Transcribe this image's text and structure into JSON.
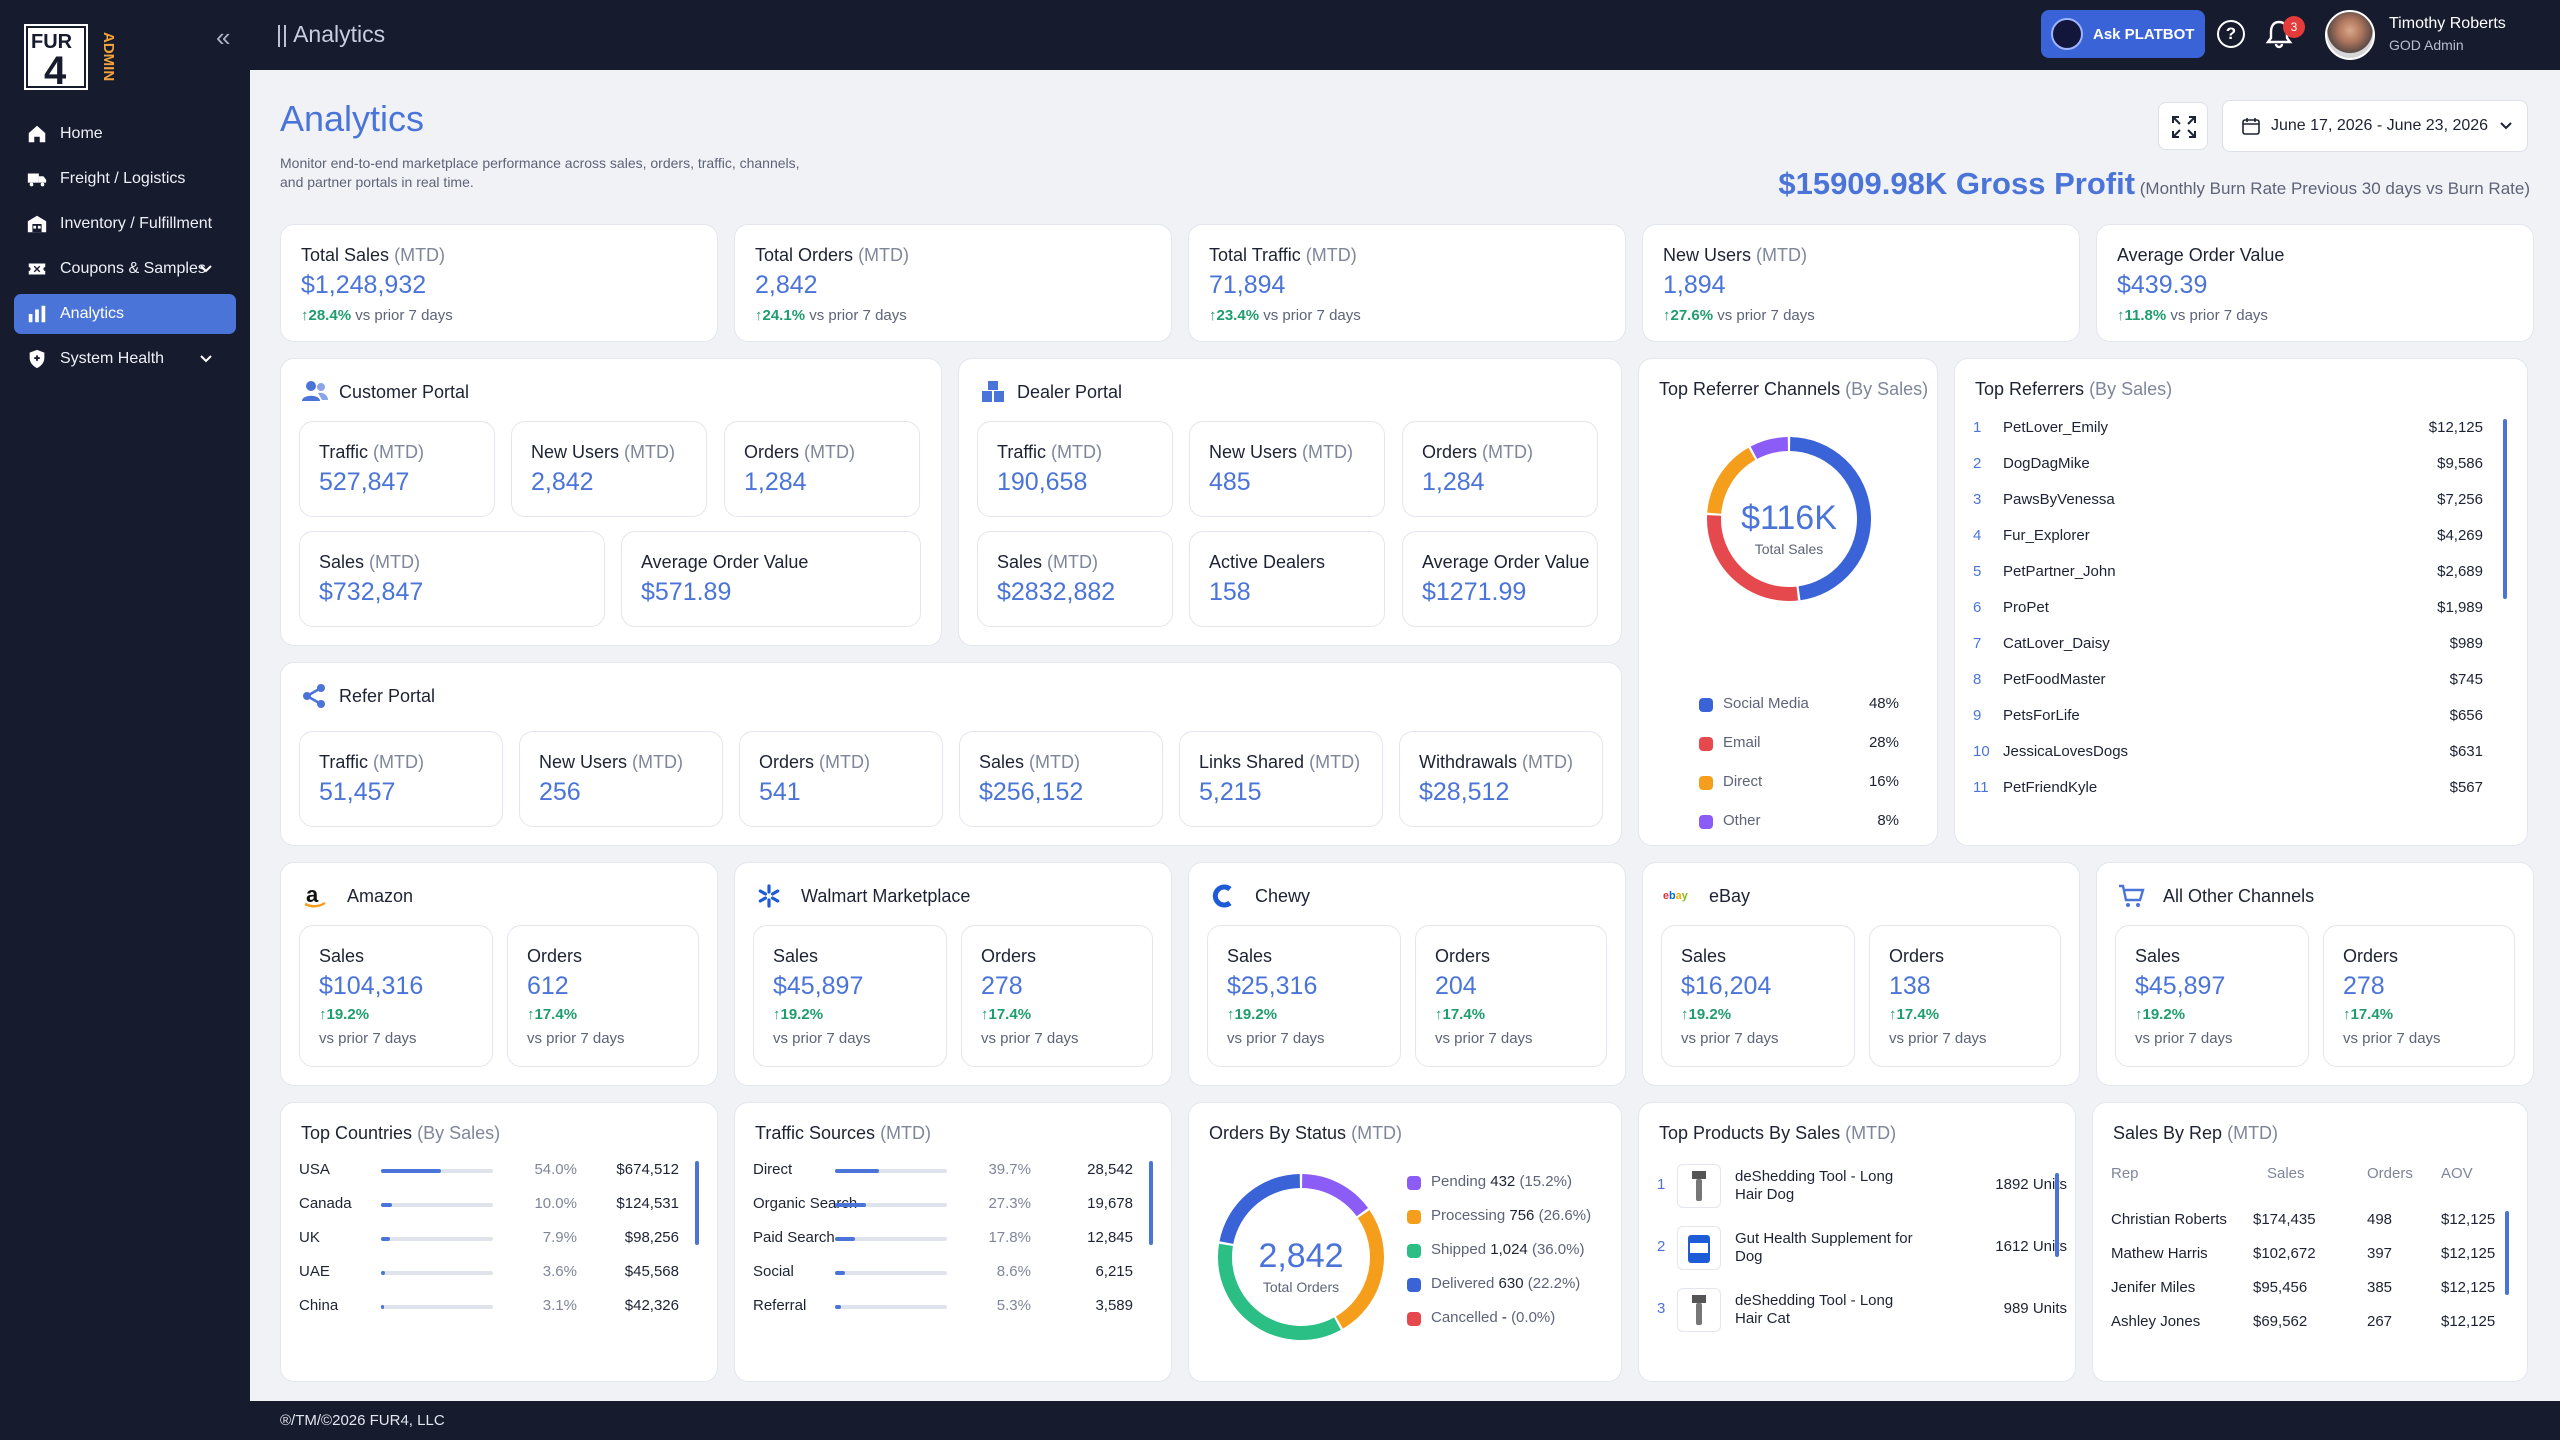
{
  "brand": {
    "logo": "FUR4",
    "tag": "ADMIN"
  },
  "nav": [
    {
      "label": "Home",
      "icon": "home-icon"
    },
    {
      "label": "Freight / Logistics",
      "icon": "truck-icon"
    },
    {
      "label": "Inventory / Fulfillment",
      "icon": "warehouse-icon"
    },
    {
      "label": "Coupons & Samples",
      "icon": "coupon-icon"
    },
    {
      "label": "Analytics",
      "icon": "chart-icon",
      "active": true
    },
    {
      "label": "System Health",
      "icon": "shield-icon"
    }
  ],
  "topbar": {
    "breadcrumb": "|| Analytics",
    "ask_label": "Ask PLATBOT",
    "notifications": "3",
    "user_name": "Timothy Roberts",
    "user_role": "GOD Admin"
  },
  "page": {
    "title": "Analytics",
    "description": "Monitor end-to-end marketplace performance across sales, orders, traffic, channels, and partner portals in real time.",
    "date_range": "June 17, 2026 - June 23, 2026",
    "gross_value": "$15909.98K Gross Profit",
    "gross_note": "(Monthly Burn Rate Previous 30 days vs Burn Rate)"
  },
  "kpis": [
    {
      "label": "Total Sales",
      "suffix": "(MTD)",
      "value": "$1,248,932",
      "change": "28.4%",
      "note": "vs prior 7 days"
    },
    {
      "label": "Total Orders",
      "suffix": "(MTD)",
      "value": "2,842",
      "change": "24.1%",
      "note": "vs prior 7 days"
    },
    {
      "label": "Total Traffic",
      "suffix": "(MTD)",
      "value": "71,894",
      "change": "23.4%",
      "note": "vs prior 7 days"
    },
    {
      "label": "New Users",
      "suffix": "(MTD)",
      "value": "1,894",
      "change": "27.6%",
      "note": "vs prior 7 days"
    },
    {
      "label": "Average Order Value",
      "suffix": "",
      "value": "$439.39",
      "change": "11.8%",
      "note": "vs prior 7 days"
    }
  ],
  "customer_portal": {
    "title": "Customer Portal",
    "items": [
      {
        "label": "Traffic",
        "suffix": "(MTD)",
        "value": "527,847"
      },
      {
        "label": "New Users",
        "suffix": "(MTD)",
        "value": "2,842"
      },
      {
        "label": "Orders",
        "suffix": "(MTD)",
        "value": "1,284"
      },
      {
        "label": "Sales",
        "suffix": "(MTD)",
        "value": "$732,847"
      },
      {
        "label": "Average Order Value",
        "suffix": "",
        "value": "$571.89"
      }
    ]
  },
  "dealer_portal": {
    "title": "Dealer Portal",
    "items": [
      {
        "label": "Traffic",
        "suffix": "(MTD)",
        "value": "190,658"
      },
      {
        "label": "New Users",
        "suffix": "(MTD)",
        "value": "485"
      },
      {
        "label": "Orders",
        "suffix": "(MTD)",
        "value": "1,284"
      },
      {
        "label": "Sales",
        "suffix": "(MTD)",
        "value": "$2832,882"
      },
      {
        "label": "Active Dealers",
        "suffix": "",
        "value": "158"
      },
      {
        "label": "Average Order Value",
        "suffix": "",
        "value": "$1271.99"
      }
    ]
  },
  "refer_portal": {
    "title": "Refer Portal",
    "items": [
      {
        "label": "Traffic",
        "suffix": "(MTD)",
        "value": "51,457"
      },
      {
        "label": "New Users",
        "suffix": "(MTD)",
        "value": "256"
      },
      {
        "label": "Orders",
        "suffix": "(MTD)",
        "value": "541"
      },
      {
        "label": "Sales",
        "suffix": "(MTD)",
        "value": "$256,152"
      },
      {
        "label": "Links Shared",
        "suffix": "(MTD)",
        "value": "5,215"
      },
      {
        "label": "Withdrawals",
        "suffix": "(MTD)",
        "value": "$28,512"
      }
    ]
  },
  "referrer_channels": {
    "title": "Top Referrer Channels",
    "suffix": "(By Sales)",
    "center_value": "$116K",
    "center_label": "Total Sales",
    "items": [
      {
        "name": "Social Media",
        "pct": "48%",
        "value": 48,
        "color": "#3b63d8"
      },
      {
        "name": "Email",
        "pct": "28%",
        "value": 28,
        "color": "#e5484d"
      },
      {
        "name": "Direct",
        "pct": "16%",
        "value": 16,
        "color": "#f59e1b"
      },
      {
        "name": "Other",
        "pct": "8%",
        "value": 8,
        "color": "#8b5cf6"
      }
    ]
  },
  "top_referrers": {
    "title": "Top Referrers",
    "suffix": "(By Sales)",
    "items": [
      {
        "rank": "1",
        "name": "PetLover_Emily",
        "amount": "$12,125"
      },
      {
        "rank": "2",
        "name": "DogDagMike",
        "amount": "$9,586"
      },
      {
        "rank": "3",
        "name": "PawsByVenessa",
        "amount": "$7,256"
      },
      {
        "rank": "4",
        "name": "Fur_Explorer",
        "amount": "$4,269"
      },
      {
        "rank": "5",
        "name": "PetPartner_John",
        "amount": "$2,689"
      },
      {
        "rank": "6",
        "name": "ProPet",
        "amount": "$1,989"
      },
      {
        "rank": "7",
        "name": "CatLover_Daisy",
        "amount": "$989"
      },
      {
        "rank": "8",
        "name": "PetFoodMaster",
        "amount": "$745"
      },
      {
        "rank": "9",
        "name": "PetsForLife",
        "amount": "$656"
      },
      {
        "rank": "10",
        "name": "JessicaLovesDogs",
        "amount": "$631"
      },
      {
        "rank": "11",
        "name": "PetFriendKyle",
        "amount": "$567"
      }
    ]
  },
  "channels": [
    {
      "name": "Amazon",
      "icon": "amazon-icon",
      "sales": "$104,316",
      "sales_change": "19.2%",
      "orders": "612",
      "orders_change": "17.4%",
      "note": "vs prior 7 days",
      "sales_label": "Sales",
      "orders_label": "Orders"
    },
    {
      "name": "Walmart Marketplace",
      "icon": "walmart-icon",
      "sales": "$45,897",
      "sales_change": "19.2%",
      "orders": "278",
      "orders_change": "17.4%",
      "note": "vs prior 7 days",
      "sales_label": "Sales",
      "orders_label": "Orders"
    },
    {
      "name": "Chewy",
      "icon": "chewy-icon",
      "sales": "$25,316",
      "sales_change": "19.2%",
      "orders": "204",
      "orders_change": "17.4%",
      "note": "vs prior 7 days",
      "sales_label": "Sales",
      "orders_label": "Orders"
    },
    {
      "name": "eBay",
      "icon": "ebay-icon",
      "sales": "$16,204",
      "sales_change": "19.2%",
      "orders": "138",
      "orders_change": "17.4%",
      "note": "vs prior 7 days",
      "sales_label": "Sales",
      "orders_label": "Orders"
    },
    {
      "name": "All Other Channels",
      "icon": "cart-icon",
      "sales": "$45,897",
      "sales_change": "19.2%",
      "orders": "278",
      "orders_change": "17.4%",
      "note": "vs prior 7 days",
      "sales_label": "Sales",
      "orders_label": "Orders"
    }
  ],
  "top_countries": {
    "title": "Top Countries",
    "suffix": "(By Sales)",
    "items": [
      {
        "name": "USA",
        "pct": "54.0%",
        "share": 54.0,
        "amount": "$674,512"
      },
      {
        "name": "Canada",
        "pct": "10.0%",
        "share": 10.0,
        "amount": "$124,531"
      },
      {
        "name": "UK",
        "pct": "7.9%",
        "share": 7.9,
        "amount": "$98,256"
      },
      {
        "name": "UAE",
        "pct": "3.6%",
        "share": 3.6,
        "amount": "$45,568"
      },
      {
        "name": "China",
        "pct": "3.1%",
        "share": 3.1,
        "amount": "$42,326"
      }
    ]
  },
  "traffic_sources": {
    "title": "Traffic Sources",
    "suffix": "(MTD)",
    "items": [
      {
        "name": "Direct",
        "pct": "39.7%",
        "share": 39.7,
        "amount": "28,542"
      },
      {
        "name": "Organic Search",
        "pct": "27.3%",
        "share": 27.3,
        "amount": "19,678"
      },
      {
        "name": "Paid Search",
        "pct": "17.8%",
        "share": 17.8,
        "amount": "12,845"
      },
      {
        "name": "Social",
        "pct": "8.6%",
        "share": 8.6,
        "amount": "6,215"
      },
      {
        "name": "Referral",
        "pct": "5.3%",
        "share": 5.3,
        "amount": "3,589"
      }
    ]
  },
  "orders_status": {
    "title": "Orders By Status",
    "suffix": "(MTD)",
    "center_value": "2,842",
    "center_label": "Total Orders",
    "items": [
      {
        "name": "Pending",
        "count": "432",
        "pct": "(15.2%)",
        "value": 15.2,
        "color": "#8b5cf6"
      },
      {
        "name": "Processing",
        "count": "756",
        "pct": "(26.6%)",
        "value": 26.6,
        "color": "#f59e1b"
      },
      {
        "name": "Shipped",
        "count": "1,024",
        "pct": "(36.0%)",
        "value": 36.0,
        "color": "#2bbf86"
      },
      {
        "name": "Delivered",
        "count": "630",
        "pct": "(22.2%)",
        "value": 22.2,
        "color": "#3b63d8"
      },
      {
        "name": "Cancelled",
        "count": "-",
        "pct": "(0.0%)",
        "value": 0,
        "color": "#e5484d"
      }
    ]
  },
  "top_products": {
    "title": "Top Products By Sales",
    "suffix": "(MTD)",
    "items": [
      {
        "rank": "1",
        "name": "deShedding Tool - Long Hair Dog",
        "units": "1892 Units"
      },
      {
        "rank": "2",
        "name": "Gut Health Supplement for Dog",
        "units": "1612 Units"
      },
      {
        "rank": "3",
        "name": "deShedding Tool - Long Hair Cat",
        "units": "989 Units"
      }
    ]
  },
  "sales_by_rep": {
    "title": "Sales By Rep",
    "suffix": "(MTD)",
    "headers": [
      "Rep",
      "Sales",
      "Orders",
      "AOV"
    ],
    "rows": [
      [
        "Christian Roberts",
        "$174,435",
        "498",
        "$12,125"
      ],
      [
        "Mathew Harris",
        "$102,672",
        "397",
        "$12,125"
      ],
      [
        "Jenifer Miles",
        "$95,456",
        "385",
        "$12,125"
      ],
      [
        "Ashley Jones",
        "$69,562",
        "267",
        "$12,125"
      ]
    ]
  },
  "footer": "®/TM/©2026 FUR4, LLC"
}
